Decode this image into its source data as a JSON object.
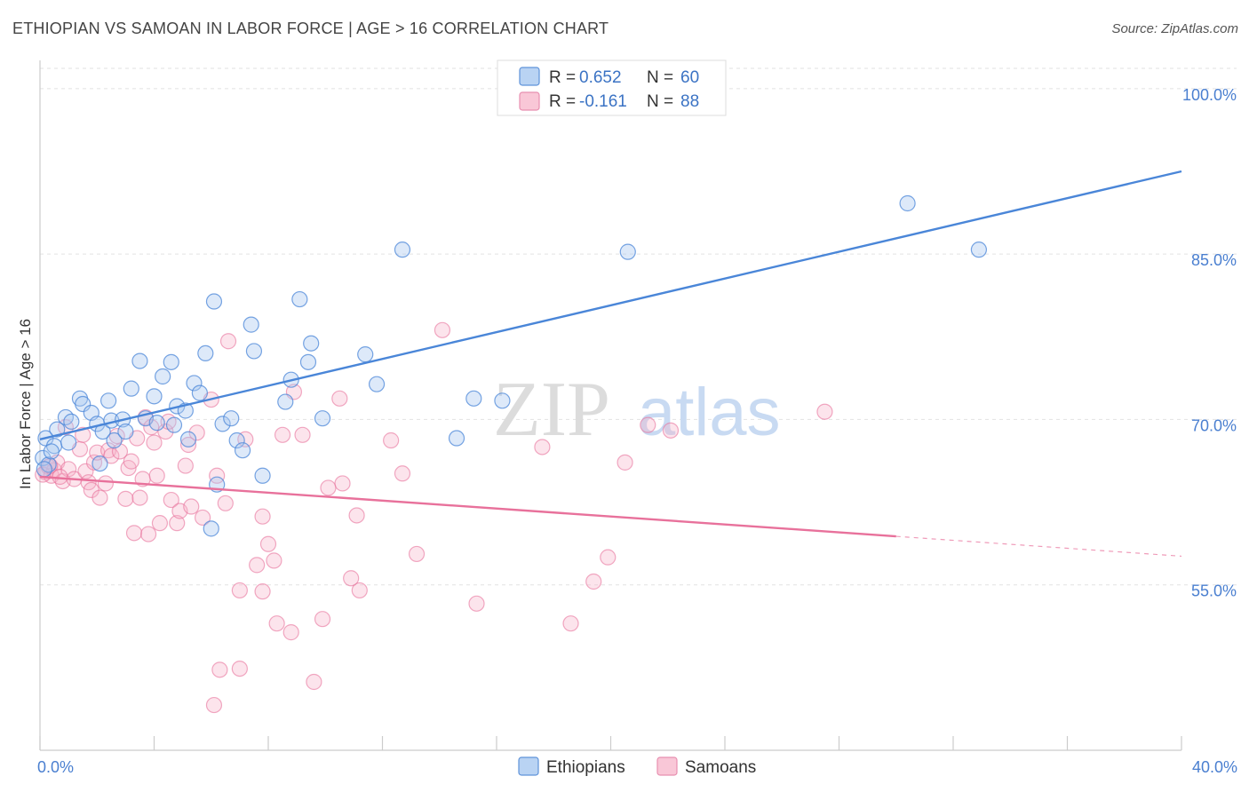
{
  "title": "ETHIOPIAN VS SAMOAN IN LABOR FORCE | AGE > 16 CORRELATION CHART",
  "source": "Source: ZipAtlas.com",
  "watermark": {
    "zip": "ZIP",
    "atlas": "atlas"
  },
  "legend_top": [
    {
      "r_label": "R =",
      "r_value": "0.652",
      "n_label": "N =",
      "n_value": "60"
    },
    {
      "r_label": "R =",
      "r_value": "-0.161",
      "n_label": "N =",
      "n_value": "88"
    }
  ],
  "colors": {
    "ethiopian": "#4a86d8",
    "ethiopian_fill": "#a9c8f0",
    "samoan": "#e8719b",
    "samoan_fill": "#f5b3c9",
    "tick": "#4a7fd0"
  },
  "chart_data": {
    "type": "scatter",
    "title": "ETHIOPIAN VS SAMOAN IN LABOR FORCE | AGE > 16 CORRELATION CHART",
    "xlabel": "",
    "ylabel": "In Labor Force | Age > 16",
    "xlim": [
      0,
      40
    ],
    "ylim": [
      40,
      102
    ],
    "x_tick_labels": [
      "0.0%",
      "40.0%"
    ],
    "y_ticks": [
      55,
      70,
      85,
      100
    ],
    "y_tick_labels": [
      "55.0%",
      "70.0%",
      "85.0%",
      "100.0%"
    ],
    "grid": "horizontal dashed",
    "legend": "top-center and bottom-center",
    "series": [
      {
        "name": "Ethiopians",
        "r": 0.652,
        "n": 60,
        "trend": {
          "x": [
            0,
            40
          ],
          "y": [
            68.2,
            92.5
          ],
          "dashed_from": null
        },
        "points": [
          [
            0.2,
            68.3
          ],
          [
            0.5,
            67.6
          ],
          [
            0.6,
            69.1
          ],
          [
            0.9,
            70.2
          ],
          [
            1.1,
            69.8
          ],
          [
            1.4,
            71.9
          ],
          [
            1.5,
            71.4
          ],
          [
            1.8,
            70.6
          ],
          [
            2.0,
            69.6
          ],
          [
            2.2,
            68.9
          ],
          [
            2.4,
            71.7
          ],
          [
            2.5,
            69.9
          ],
          [
            2.6,
            68.1
          ],
          [
            2.9,
            70.0
          ],
          [
            3.0,
            68.9
          ],
          [
            3.2,
            72.8
          ],
          [
            3.5,
            75.3
          ],
          [
            3.7,
            70.1
          ],
          [
            4.0,
            72.1
          ],
          [
            4.1,
            69.7
          ],
          [
            4.3,
            73.9
          ],
          [
            4.6,
            75.2
          ],
          [
            4.7,
            69.5
          ],
          [
            4.8,
            71.2
          ],
          [
            5.1,
            70.8
          ],
          [
            5.4,
            73.3
          ],
          [
            5.6,
            72.4
          ],
          [
            5.8,
            76.0
          ],
          [
            6.1,
            80.7
          ],
          [
            6.4,
            69.6
          ],
          [
            6.7,
            70.1
          ],
          [
            6.9,
            68.1
          ],
          [
            7.1,
            67.2
          ],
          [
            7.4,
            78.6
          ],
          [
            7.5,
            76.2
          ],
          [
            7.8,
            64.9
          ],
          [
            8.6,
            71.6
          ],
          [
            8.8,
            73.6
          ],
          [
            9.1,
            80.9
          ],
          [
            9.4,
            75.2
          ],
          [
            9.5,
            76.9
          ],
          [
            9.9,
            70.1
          ],
          [
            11.4,
            75.9
          ],
          [
            11.8,
            73.2
          ],
          [
            12.7,
            85.4
          ],
          [
            14.6,
            68.3
          ],
          [
            15.2,
            71.9
          ],
          [
            16.2,
            71.7
          ],
          [
            20.6,
            85.2
          ],
          [
            30.4,
            89.6
          ],
          [
            32.9,
            85.4
          ],
          [
            0.1,
            66.5
          ],
          [
            0.3,
            65.9
          ],
          [
            0.4,
            67.1
          ],
          [
            1.0,
            67.9
          ],
          [
            5.2,
            68.2
          ],
          [
            6.2,
            64.1
          ],
          [
            6.0,
            60.1
          ],
          [
            0.15,
            65.5
          ],
          [
            2.1,
            66.0
          ]
        ]
      },
      {
        "name": "Samoans",
        "r": -0.161,
        "n": 88,
        "trend": {
          "x": [
            0,
            40
          ],
          "y": [
            64.8,
            57.6
          ],
          "dashed_from": 30
        },
        "points": [
          [
            0.2,
            65.2
          ],
          [
            0.3,
            65.7
          ],
          [
            0.4,
            64.9
          ],
          [
            0.5,
            65.4
          ],
          [
            0.6,
            66.1
          ],
          [
            0.8,
            64.4
          ],
          [
            0.9,
            69.3
          ],
          [
            1.0,
            65.5
          ],
          [
            1.2,
            64.6
          ],
          [
            1.4,
            67.3
          ],
          [
            1.6,
            65.3
          ],
          [
            1.7,
            64.3
          ],
          [
            1.8,
            63.6
          ],
          [
            1.9,
            66.1
          ],
          [
            2.0,
            67.0
          ],
          [
            2.1,
            62.9
          ],
          [
            2.3,
            64.2
          ],
          [
            2.4,
            67.2
          ],
          [
            2.5,
            66.7
          ],
          [
            2.7,
            68.5
          ],
          [
            2.8,
            67.1
          ],
          [
            3.0,
            62.8
          ],
          [
            3.1,
            65.6
          ],
          [
            3.2,
            66.2
          ],
          [
            3.3,
            59.7
          ],
          [
            3.4,
            68.3
          ],
          [
            3.5,
            62.9
          ],
          [
            3.6,
            64.6
          ],
          [
            3.7,
            70.2
          ],
          [
            3.8,
            59.6
          ],
          [
            3.9,
            69.3
          ],
          [
            4.0,
            67.9
          ],
          [
            4.1,
            64.9
          ],
          [
            4.2,
            60.6
          ],
          [
            4.4,
            68.9
          ],
          [
            4.5,
            69.8
          ],
          [
            4.6,
            62.7
          ],
          [
            4.8,
            60.6
          ],
          [
            4.9,
            61.7
          ],
          [
            5.1,
            65.8
          ],
          [
            5.2,
            67.7
          ],
          [
            5.3,
            62.1
          ],
          [
            5.5,
            68.8
          ],
          [
            5.7,
            61.1
          ],
          [
            6.0,
            71.8
          ],
          [
            6.2,
            64.9
          ],
          [
            6.5,
            62.4
          ],
          [
            6.6,
            77.1
          ],
          [
            7.0,
            54.5
          ],
          [
            7.2,
            68.2
          ],
          [
            7.6,
            56.8
          ],
          [
            7.8,
            61.2
          ],
          [
            7.8,
            54.4
          ],
          [
            8.0,
            58.7
          ],
          [
            8.2,
            57.2
          ],
          [
            8.3,
            51.5
          ],
          [
            8.5,
            68.6
          ],
          [
            8.8,
            50.7
          ],
          [
            8.9,
            72.5
          ],
          [
            9.2,
            68.6
          ],
          [
            9.6,
            46.2
          ],
          [
            10.1,
            63.8
          ],
          [
            10.5,
            71.9
          ],
          [
            10.6,
            64.2
          ],
          [
            10.9,
            55.6
          ],
          [
            11.1,
            61.3
          ],
          [
            11.2,
            54.5
          ],
          [
            12.3,
            68.1
          ],
          [
            12.7,
            65.1
          ],
          [
            13.2,
            57.8
          ],
          [
            14.1,
            78.1
          ],
          [
            15.3,
            53.3
          ],
          [
            17.6,
            67.5
          ],
          [
            18.6,
            51.5
          ],
          [
            19.4,
            55.3
          ],
          [
            19.9,
            57.5
          ],
          [
            20.5,
            66.1
          ],
          [
            21.3,
            69.5
          ],
          [
            22.1,
            69.0
          ],
          [
            27.5,
            70.7
          ],
          [
            6.1,
            44.1
          ],
          [
            7.0,
            47.4
          ],
          [
            9.9,
            51.9
          ],
          [
            6.3,
            47.3
          ],
          [
            0.1,
            65.0
          ],
          [
            0.35,
            65.8
          ],
          [
            1.5,
            68.6
          ],
          [
            0.7,
            64.8
          ]
        ]
      }
    ]
  },
  "bottom_legend": [
    "Ethiopians",
    "Samoans"
  ]
}
